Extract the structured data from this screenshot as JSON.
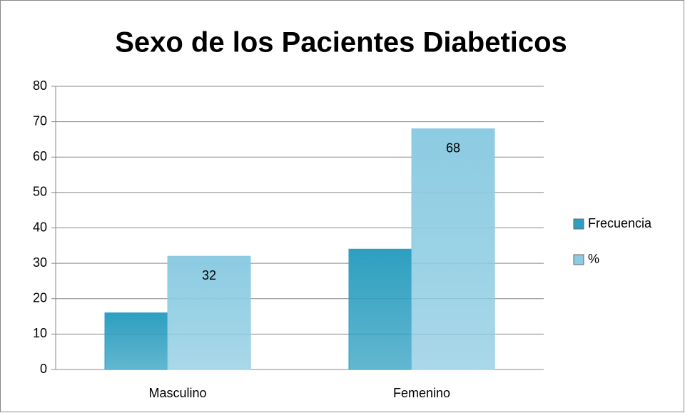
{
  "chart_data": {
    "type": "bar",
    "title": "Sexo de los Pacientes Diabeticos",
    "categories": [
      "Masculino",
      "Femenino"
    ],
    "series": [
      {
        "name": "Frecuencia",
        "color": "#2e9fc0",
        "values": [
          16,
          34
        ]
      },
      {
        "name": "%",
        "color": "#8ccbe2",
        "values": [
          32,
          68
        ],
        "show_labels": true
      }
    ],
    "ylim": [
      0,
      80
    ],
    "yticks": [
      0,
      10,
      20,
      30,
      40,
      50,
      60,
      70,
      80
    ],
    "grid": true,
    "legend": "right"
  }
}
